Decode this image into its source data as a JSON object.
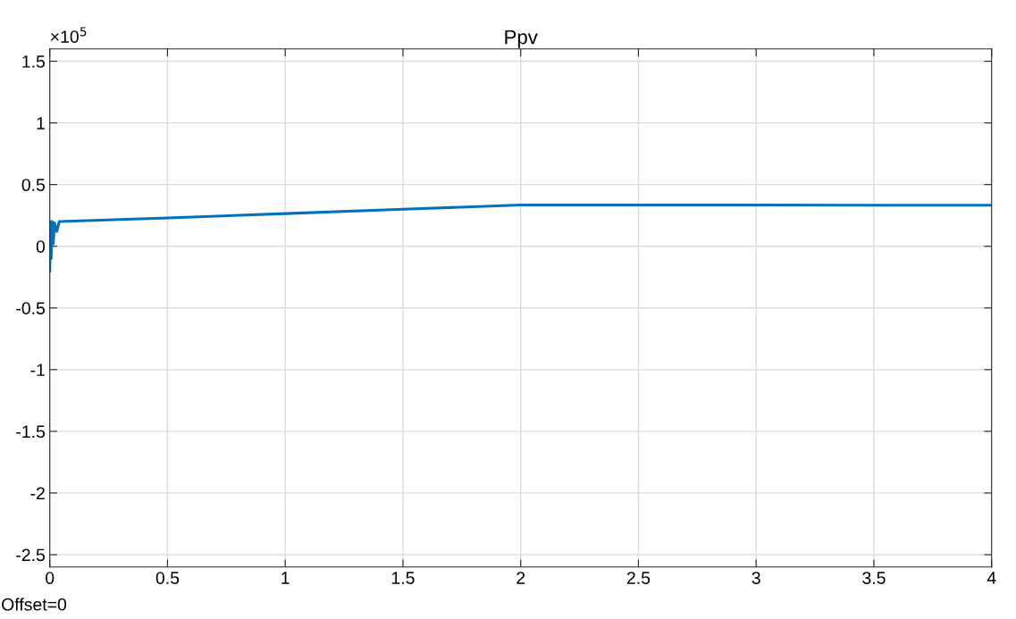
{
  "chart_data": {
    "type": "line",
    "title": "Ppv",
    "x": [
      0,
      0.003,
      0.006,
      0.01,
      0.015,
      0.02,
      0.03,
      0.04,
      0.1,
      0.5,
      1,
      1.5,
      2,
      2.5,
      3,
      3.5,
      4
    ],
    "series": [
      {
        "color": "#0072bd",
        "values": [
          -0.2,
          0.2,
          -0.1,
          0.2,
          0.02,
          0.19,
          0.12,
          0.2,
          0.205,
          0.23,
          0.265,
          0.3,
          0.335,
          0.335,
          0.335,
          0.333,
          0.333
        ]
      }
    ],
    "xlim": [
      0,
      4
    ],
    "xticks": [
      0,
      0.5,
      1,
      1.5,
      2,
      2.5,
      3,
      3.5,
      4
    ],
    "ylim": [
      -2.6,
      1.6
    ],
    "yticks": [
      -2.5,
      -2,
      -1.5,
      -1,
      -0.5,
      0,
      0.5,
      1,
      1.5
    ],
    "grid": true,
    "marker": "none",
    "line_style": "solid",
    "legend": false,
    "annotations": [
      "×10$^{5}$",
      "Offset=0"
    ]
  }
}
